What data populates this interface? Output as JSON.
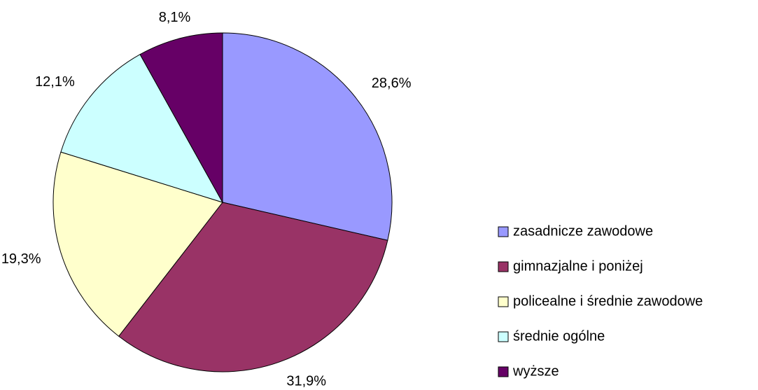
{
  "chart_data": {
    "type": "pie",
    "categories": [
      "zasadnicze zawodowe",
      "gimnazjalne i poniżej",
      "policealne i średnie zawodowe",
      "średnie ogólne",
      "wyższe"
    ],
    "values": [
      28.6,
      31.9,
      19.3,
      12.1,
      8.1
    ],
    "value_labels": [
      "28,6%",
      "31,9%",
      "19,3%",
      "12,1%",
      "8,1%"
    ],
    "colors": [
      "#9999ff",
      "#993366",
      "#ffffcc",
      "#ccffff",
      "#660066"
    ],
    "legend": "right"
  }
}
